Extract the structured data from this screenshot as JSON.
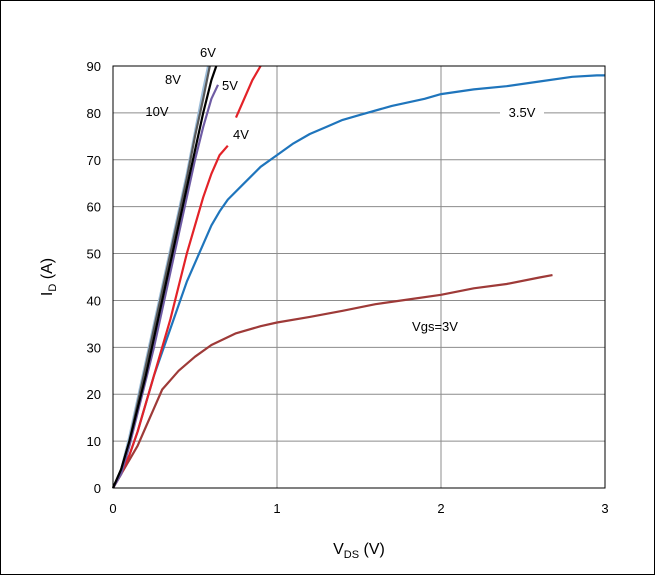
{
  "chart_data": {
    "type": "line",
    "xlabel": {
      "main": "V",
      "sub": "DS",
      "unit": " (V)"
    },
    "ylabel": {
      "main": "I",
      "sub": "D",
      "unit": " (A)"
    },
    "xlim": [
      0,
      3
    ],
    "ylim": [
      0,
      90
    ],
    "x_ticks": [
      0,
      1,
      2,
      3
    ],
    "y_ticks": [
      0,
      10,
      20,
      30,
      40,
      50,
      60,
      70,
      80,
      90
    ],
    "grid": true,
    "series": [
      {
        "name": "Vgs=3V",
        "color": "#9e3a38",
        "points": [
          [
            0,
            0
          ],
          [
            0.05,
            3
          ],
          [
            0.1,
            6
          ],
          [
            0.15,
            9
          ],
          [
            0.2,
            13
          ],
          [
            0.25,
            17
          ],
          [
            0.3,
            21
          ],
          [
            0.35,
            23
          ],
          [
            0.4,
            25
          ],
          [
            0.5,
            28
          ],
          [
            0.6,
            30.5
          ],
          [
            0.75,
            33
          ],
          [
            0.9,
            34.5
          ],
          [
            1.0,
            35.3
          ],
          [
            1.2,
            36.5
          ],
          [
            1.4,
            37.8
          ],
          [
            1.6,
            39.2
          ],
          [
            1.8,
            40.2
          ],
          [
            2.0,
            41.2
          ],
          [
            2.2,
            42.6
          ],
          [
            2.4,
            43.5
          ],
          [
            2.6,
            44.9
          ],
          [
            2.68,
            45.4
          ]
        ]
      },
      {
        "name": "3.5V",
        "color": "#1f75bc",
        "points": [
          [
            0,
            0
          ],
          [
            0.05,
            3
          ],
          [
            0.1,
            7
          ],
          [
            0.15,
            12
          ],
          [
            0.2,
            18
          ],
          [
            0.25,
            24
          ],
          [
            0.3,
            29
          ],
          [
            0.35,
            34
          ],
          [
            0.4,
            39
          ],
          [
            0.45,
            44
          ],
          [
            0.5,
            48
          ],
          [
            0.55,
            52
          ],
          [
            0.6,
            56
          ],
          [
            0.65,
            59
          ],
          [
            0.7,
            61.5
          ],
          [
            0.8,
            65
          ],
          [
            0.9,
            68.5
          ],
          [
            1.0,
            71
          ],
          [
            1.1,
            73.5
          ],
          [
            1.2,
            75.5
          ],
          [
            1.3,
            77
          ],
          [
            1.4,
            78.5
          ],
          [
            1.5,
            79.5
          ],
          [
            1.7,
            81.5
          ],
          [
            1.9,
            83
          ],
          [
            2.0,
            84
          ],
          [
            2.2,
            85
          ],
          [
            2.4,
            85.7
          ],
          [
            2.6,
            86.7
          ],
          [
            2.8,
            87.7
          ],
          [
            2.95,
            88
          ],
          [
            3.0,
            88
          ]
        ]
      },
      {
        "name": "4V",
        "color": "#e32228",
        "points": [
          [
            0,
            0
          ],
          [
            0.05,
            3
          ],
          [
            0.1,
            7
          ],
          [
            0.15,
            12
          ],
          [
            0.2,
            18
          ],
          [
            0.25,
            24
          ],
          [
            0.3,
            30
          ],
          [
            0.35,
            36
          ],
          [
            0.4,
            43
          ],
          [
            0.45,
            50
          ],
          [
            0.5,
            56
          ],
          [
            0.55,
            62
          ],
          [
            0.6,
            67
          ],
          [
            0.65,
            71
          ],
          [
            0.7,
            73
          ]
        ],
        "points2": [
          [
            0.75,
            79
          ],
          [
            0.8,
            83
          ],
          [
            0.85,
            87
          ],
          [
            0.9,
            90
          ]
        ]
      },
      {
        "name": "5V",
        "color": "#6f5ca4",
        "points": [
          [
            0,
            0
          ],
          [
            0.05,
            3
          ],
          [
            0.1,
            9
          ],
          [
            0.15,
            16
          ],
          [
            0.2,
            23
          ],
          [
            0.25,
            30
          ],
          [
            0.3,
            38
          ],
          [
            0.35,
            46
          ],
          [
            0.4,
            54
          ],
          [
            0.45,
            62
          ],
          [
            0.5,
            70
          ],
          [
            0.55,
            77
          ],
          [
            0.6,
            83
          ],
          [
            0.64,
            86
          ]
        ]
      },
      {
        "name": "6V",
        "color": "#000000",
        "points": [
          [
            0,
            0
          ],
          [
            0.05,
            4
          ],
          [
            0.1,
            10
          ],
          [
            0.15,
            17
          ],
          [
            0.2,
            24
          ],
          [
            0.25,
            32
          ],
          [
            0.3,
            40
          ],
          [
            0.35,
            48
          ],
          [
            0.4,
            56
          ],
          [
            0.45,
            64
          ],
          [
            0.5,
            72
          ],
          [
            0.55,
            80
          ],
          [
            0.6,
            87
          ],
          [
            0.63,
            90
          ]
        ]
      },
      {
        "name": "8V",
        "color": "#585858",
        "points": [
          [
            0,
            0
          ],
          [
            0.05,
            4
          ],
          [
            0.1,
            10
          ],
          [
            0.15,
            18
          ],
          [
            0.2,
            26
          ],
          [
            0.25,
            34
          ],
          [
            0.3,
            42
          ],
          [
            0.35,
            50
          ],
          [
            0.4,
            58
          ],
          [
            0.45,
            66
          ],
          [
            0.5,
            75
          ],
          [
            0.55,
            83
          ],
          [
            0.59,
            90
          ]
        ]
      },
      {
        "name": "10V",
        "color": "#9cbcd8",
        "points": [
          [
            0,
            0
          ],
          [
            0.05,
            4
          ],
          [
            0.1,
            11
          ],
          [
            0.15,
            19
          ],
          [
            0.2,
            27
          ],
          [
            0.25,
            35
          ],
          [
            0.3,
            43
          ],
          [
            0.35,
            51
          ],
          [
            0.4,
            59
          ],
          [
            0.45,
            67
          ],
          [
            0.5,
            76
          ],
          [
            0.55,
            85
          ],
          [
            0.58,
            90
          ]
        ]
      }
    ],
    "annotations": [
      {
        "text": "6V",
        "series": "6V"
      },
      {
        "text": "8V",
        "series": "8V"
      },
      {
        "text": "5V",
        "series": "5V"
      },
      {
        "text": "10V",
        "series": "10V"
      },
      {
        "text": "4V",
        "series": "4V"
      },
      {
        "text": "3.5V",
        "series": "3.5V"
      },
      {
        "text": "Vgs=3V",
        "series": "Vgs=3V"
      }
    ]
  }
}
